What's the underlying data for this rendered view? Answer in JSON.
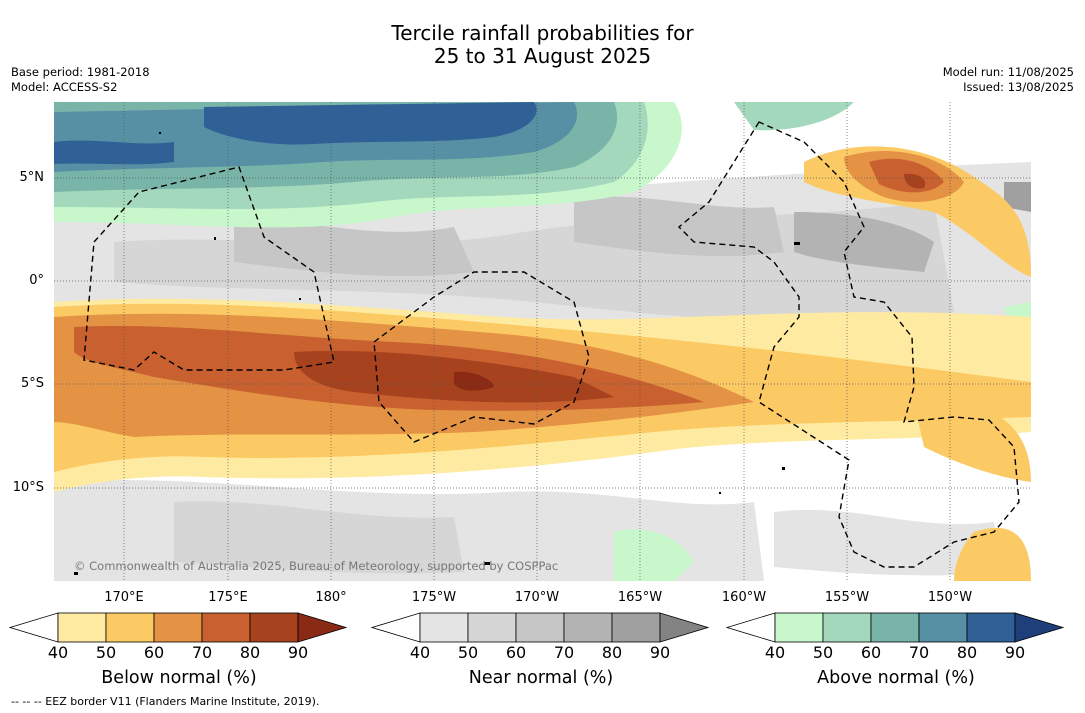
{
  "title": {
    "line1": "Tercile rainfall probabilities for",
    "line2": "25 to 31 August 2025"
  },
  "meta_left": {
    "base_period": "Base period: 1981-2018",
    "model": "Model: ACCESS-S2"
  },
  "meta_right": {
    "model_run": "Model run: 11/08/2025",
    "issued": "Issued: 13/08/2025"
  },
  "latitude_labels": [
    "5°N",
    "0°",
    "5°S",
    "10°S"
  ],
  "longitude_labels": [
    "170°E",
    "175°E",
    "180°",
    "175°W",
    "170°W",
    "165°W",
    "160°W",
    "155°W",
    "150°W"
  ],
  "attribution": "© Commonwealth of Australia 2025, Bureau of Meteorology, supported by COSPPac",
  "colorbars": [
    {
      "label": "Below normal (%)",
      "ticks": [
        "40",
        "50",
        "60",
        "70",
        "80",
        "90"
      ],
      "colors": [
        "#ffffff",
        "#feeba1",
        "#fcca64",
        "#e49244",
        "#c8612f",
        "#a7421f",
        "#8a2a15"
      ]
    },
    {
      "label": "Near normal (%)",
      "ticks": [
        "40",
        "50",
        "60",
        "70",
        "80",
        "90"
      ],
      "colors": [
        "#ffffff",
        "#e4e4e4",
        "#d6d6d6",
        "#c6c6c6",
        "#b3b3b3",
        "#a0a0a0",
        "#838383"
      ]
    },
    {
      "label": "Above normal (%)",
      "ticks": [
        "40",
        "50",
        "60",
        "70",
        "80",
        "90"
      ],
      "colors": [
        "#ffffff",
        "#c9f7cc",
        "#a3d8bc",
        "#79b4a8",
        "#5790a4",
        "#2f6196",
        "#1f3f7a"
      ]
    }
  ],
  "eez_note": "-- -- -- EEZ border V11 (Flanders Marine Institute, 2019)."
}
